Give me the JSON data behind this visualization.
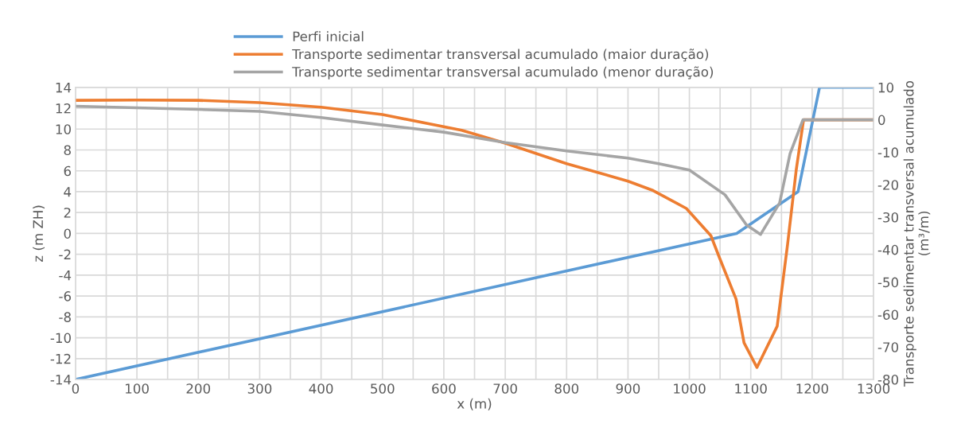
{
  "chart_data": {
    "type": "line",
    "xlabel": "x (m)",
    "ylabel": "z (m ZH)",
    "y2label": "Transporte sedimentar transversal acumulado\n(m³/m)",
    "xlim": [
      0,
      1300
    ],
    "xticks": [
      0,
      {
        "value": 50,
        "label": null
      },
      100,
      {
        "value": 150,
        "label": null
      },
      200,
      {
        "value": 250,
        "label": null
      },
      300,
      {
        "value": 350,
        "label": null
      },
      400,
      {
        "value": 450,
        "label": null
      },
      500,
      {
        "value": 550,
        "label": null
      },
      600,
      {
        "value": 650,
        "label": null
      },
      700,
      {
        "value": 750,
        "label": null
      },
      800,
      {
        "value": 850,
        "label": null
      },
      900,
      {
        "value": 950,
        "label": null
      },
      1000,
      {
        "value": 1050,
        "label": null
      },
      1100,
      {
        "value": 1150,
        "label": null
      },
      1200,
      {
        "value": 1250,
        "label": null
      },
      1300
    ],
    "ylim": [
      -14,
      14
    ],
    "yticks": [
      -14,
      -12,
      -10,
      -8,
      -6,
      -4,
      -2,
      0,
      2,
      4,
      6,
      8,
      10,
      12,
      14
    ],
    "y2lim": [
      -80,
      10
    ],
    "y2ticks": [
      -80,
      -70,
      -60,
      -50,
      -40,
      -30,
      -20,
      -10,
      0,
      10
    ],
    "grid": true,
    "legend": "top",
    "marker": "none",
    "line_style": "solid",
    "series": [
      {
        "name": "Perfi inicial",
        "color": "#5b9bd5",
        "x": [
          0,
          1077,
          1177,
          1212,
          1300
        ],
        "values": [
          -14,
          0,
          4,
          14,
          14
        ]
      },
      {
        "name": "Transporte sedimentar transversal acumulado (maior duração)",
        "color": "#ed7d31",
        "axis": "y2",
        "x": [
          0,
          100,
          200,
          300,
          400,
          500,
          629,
          700,
          800,
          900,
          941,
          995,
          1035,
          1049,
          1076,
          1089,
          1110,
          1143,
          1160,
          1174,
          1186,
          1300
        ],
        "values": [
          6.0,
          6.1,
          6.0,
          5.3,
          3.9,
          1.6,
          -3.2,
          -7.2,
          -13.5,
          -18.9,
          -21.8,
          -27.3,
          -35.7,
          -42.5,
          -55.2,
          -68.7,
          -76.3,
          -63.6,
          -38.3,
          -15.5,
          0,
          0
        ]
      },
      {
        "name": "Transporte sedimentar transversal acumulado (menor duração)",
        "color": "#a5a5a5",
        "axis": "y2",
        "x": [
          0,
          200,
          300,
          400,
          500,
          600,
          700,
          800,
          900,
          950,
          1000,
          1058,
          1093,
          1116,
          1147,
          1164,
          1185,
          1300
        ],
        "values": [
          4.2,
          3.2,
          2.6,
          0.7,
          -1.6,
          -3.8,
          -7.0,
          -9.6,
          -11.8,
          -13.5,
          -15.5,
          -23.1,
          -32.4,
          -35.3,
          -25.6,
          -10.4,
          0,
          0
        ]
      }
    ]
  }
}
